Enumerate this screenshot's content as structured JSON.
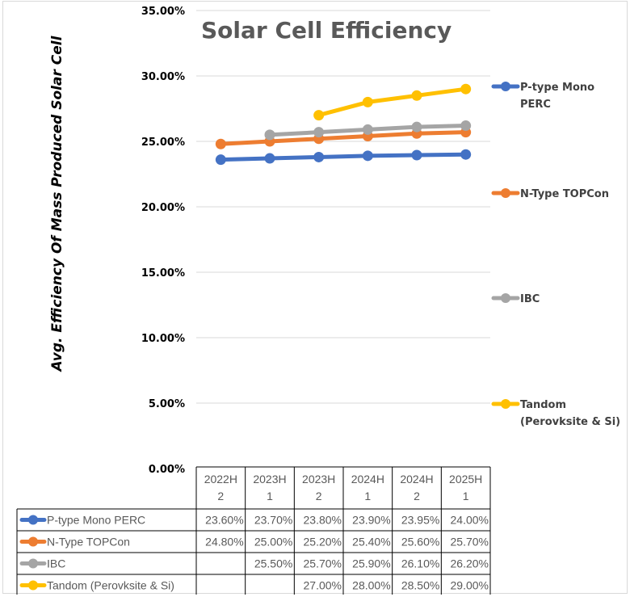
{
  "chart_data": {
    "type": "line",
    "title": "Solar Cell Efficiency",
    "xlabel": "",
    "ylabel": "Avg. Efficiency Of Mass Produced Solar Cell",
    "ylim": [
      0,
      35
    ],
    "yticks": [
      "0.00%",
      "5.00%",
      "10.00%",
      "15.00%",
      "20.00%",
      "25.00%",
      "30.00%",
      "35.00%"
    ],
    "ytick_values": [
      0,
      5,
      10,
      15,
      20,
      25,
      30,
      35
    ],
    "grid": true,
    "legend_placement": "right",
    "categories": [
      "2022H2",
      "2023H1",
      "2023H2",
      "2024H1",
      "2024H2",
      "2025H1"
    ],
    "category_labels": [
      [
        "2022H",
        "2"
      ],
      [
        "2023H",
        "1"
      ],
      [
        "2023H",
        "2"
      ],
      [
        "2024H",
        "1"
      ],
      [
        "2024H",
        "2"
      ],
      [
        "2025H",
        "1"
      ]
    ],
    "series": [
      {
        "name": "P-type Mono PERC",
        "legend_lines": [
          "P-type Mono",
          "PERC"
        ],
        "color": "#4472C4",
        "values": [
          23.6,
          23.7,
          23.8,
          23.9,
          23.95,
          24.0
        ],
        "labels": [
          "23.60%",
          "23.70%",
          "23.80%",
          "23.90%",
          "23.95%",
          "24.00%"
        ]
      },
      {
        "name": "N-Type TOPCon",
        "legend_lines": [
          "N-Type TOPCon"
        ],
        "color": "#ED7D31",
        "values": [
          24.8,
          25.0,
          25.2,
          25.4,
          25.6,
          25.7
        ],
        "labels": [
          "24.80%",
          "25.00%",
          "25.20%",
          "25.40%",
          "25.60%",
          "25.70%"
        ]
      },
      {
        "name": "IBC",
        "legend_lines": [
          "IBC"
        ],
        "color": "#A5A5A5",
        "values": [
          null,
          25.5,
          25.7,
          25.9,
          26.1,
          26.2
        ],
        "labels": [
          "",
          "25.50%",
          "25.70%",
          "25.90%",
          "26.10%",
          "26.20%"
        ]
      },
      {
        "name": "Tandom (Perovksite & Si)",
        "legend_lines": [
          "Tandom",
          "(Perovksite & Si)"
        ],
        "color": "#FFC000",
        "values": [
          null,
          null,
          27.0,
          28.0,
          28.5,
          29.0
        ],
        "labels": [
          "",
          "",
          "27.00%",
          "28.00%",
          "28.50%",
          "29.00%"
        ]
      }
    ],
    "data_table": true
  }
}
